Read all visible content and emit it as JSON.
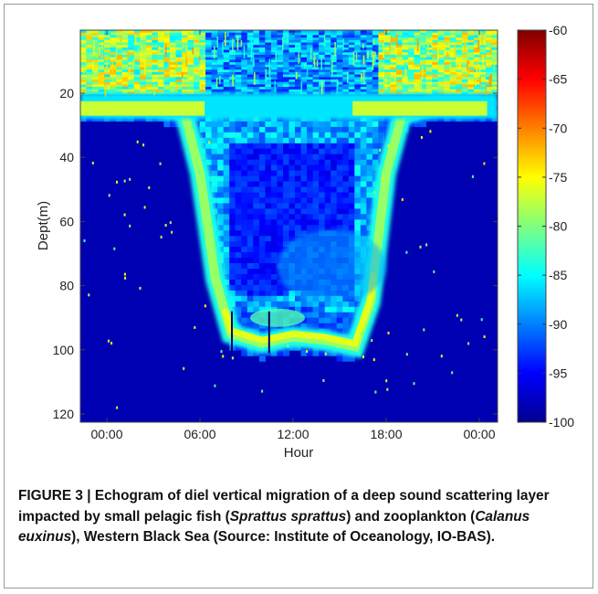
{
  "chart_data": {
    "type": "heatmap",
    "title": "",
    "xlabel": "Hour",
    "ylabel": "Dept(m)",
    "x_ticks": [
      "00:00",
      "06:00",
      "12:00",
      "18:00",
      "00:00"
    ],
    "x_range_hours": [
      0,
      24
    ],
    "y_ticks": [
      20,
      40,
      60,
      80,
      100,
      120
    ],
    "y_range": [
      0,
      121
    ],
    "y_reversed": true,
    "colorbar": {
      "ticks": [
        -60,
        -65,
        -70,
        -75,
        -80,
        -85,
        -90,
        -95,
        -100
      ],
      "range": [
        -100,
        -60
      ],
      "colormap": "jet"
    },
    "layer_depth_profile": {
      "hours": [
        0,
        3,
        5,
        6,
        7,
        8,
        10,
        12,
        14,
        16,
        17,
        18,
        19,
        21,
        24
      ],
      "depth_m": [
        24,
        24,
        26,
        45,
        78,
        95,
        98,
        96,
        97,
        99,
        85,
        45,
        27,
        24,
        24
      ]
    }
  },
  "caption": {
    "label": "FIGURE 3 | ",
    "text1": "Echogram of diel vertical migration of a deep sound scattering layer impacted by small pelagic fish (",
    "species1": "Sprattus sprattus",
    "text2": ") and zooplankton (",
    "species2": "Calanus euxinus",
    "text3": "), Western Black Sea (Source: Institute of Oceanology, IO-BAS)."
  }
}
